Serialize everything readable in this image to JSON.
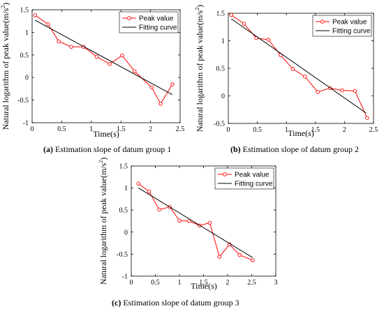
{
  "chart_data": [
    {
      "type": "line",
      "caption_tag": "(a)",
      "caption_text": " Estimation slope of datum group 1",
      "xlabel": "Time(s)",
      "ylabel_main": "Natural logarithm of peak value(m/s",
      "ylabel_sup": "2",
      "ylabel_end": ")",
      "xlim": [
        0,
        2.5
      ],
      "ylim": [
        -1,
        1.5
      ],
      "xticks": [
        "0",
        "0.5",
        "1",
        "1.5",
        "2",
        "2.5"
      ],
      "yticks": [
        "-1",
        "-0.5",
        "0",
        "0.5",
        "1",
        "1.5"
      ],
      "legend_position": "top-right",
      "series": [
        {
          "name": "Peak value",
          "color": "#ff0000",
          "marker": "circle",
          "x": [
            0.05,
            0.27,
            0.45,
            0.66,
            0.87,
            1.09,
            1.31,
            1.52,
            1.73,
            2.02,
            2.17,
            2.37
          ],
          "y": [
            1.38,
            1.18,
            0.8,
            0.68,
            0.68,
            0.46,
            0.3,
            0.49,
            0.14,
            -0.22,
            -0.58,
            -0.15
          ]
        },
        {
          "name": "Fitting curve",
          "color": "#000000",
          "marker": "none",
          "x": [
            0.05,
            2.37
          ],
          "y": [
            1.27,
            -0.38
          ]
        }
      ]
    },
    {
      "type": "line",
      "caption_tag": "(b)",
      "caption_text": " Estimation slope of datum group 2",
      "xlabel": "Time(s)",
      "ylabel_main": "Natural logarithm of peak value(m/s",
      "ylabel_sup": "2",
      "ylabel_end": ")",
      "xlim": [
        0,
        2.5
      ],
      "ylim": [
        -0.5,
        1.5
      ],
      "xticks": [
        "0",
        "0.5",
        "1",
        "1.5",
        "2",
        "2.5"
      ],
      "yticks": [
        "-0.5",
        "0",
        "0.5",
        "1",
        "1.5"
      ],
      "legend_position": "top-right",
      "series": [
        {
          "name": "Peak value",
          "color": "#ff0000",
          "marker": "circle",
          "x": [
            0.05,
            0.27,
            0.48,
            0.69,
            0.9,
            1.11,
            1.32,
            1.54,
            1.75,
            1.96,
            2.18,
            2.39
          ],
          "y": [
            1.47,
            1.31,
            1.05,
            1.02,
            0.74,
            0.49,
            0.35,
            0.07,
            0.14,
            0.1,
            0.09,
            -0.4
          ]
        },
        {
          "name": "Fitting curve",
          "color": "#000000",
          "marker": "none",
          "x": [
            0.05,
            2.37
          ],
          "y": [
            1.4,
            -0.31
          ]
        }
      ]
    },
    {
      "type": "line",
      "caption_tag": "(c)",
      "caption_text": " Estimation slope of datum group 3",
      "xlabel": "Time(s)",
      "ylabel_main": "Natural logarithm of peak value(m/s",
      "ylabel_sup": "2",
      "ylabel_end": ")",
      "xlim": [
        0,
        3
      ],
      "ylim": [
        -1,
        1.5
      ],
      "xticks": [
        "0",
        "0.5",
        "1",
        "1.5",
        "2",
        "2.5",
        "3"
      ],
      "yticks": [
        "-1",
        "-0.5",
        "0",
        "0.5",
        "1",
        "1.5"
      ],
      "legend_position": "top-right",
      "series": [
        {
          "name": "Peak value",
          "color": "#ff0000",
          "marker": "circle",
          "x": [
            0.15,
            0.37,
            0.58,
            0.8,
            1.0,
            1.2,
            1.42,
            1.63,
            1.83,
            2.04,
            2.25,
            2.52
          ],
          "y": [
            1.1,
            0.92,
            0.51,
            0.57,
            0.26,
            0.25,
            0.15,
            0.21,
            -0.56,
            -0.28,
            -0.52,
            -0.64
          ]
        },
        {
          "name": "Fitting curve",
          "color": "#000000",
          "marker": "none",
          "x": [
            0.15,
            2.52
          ],
          "y": [
            1.0,
            -0.58
          ]
        }
      ]
    }
  ]
}
